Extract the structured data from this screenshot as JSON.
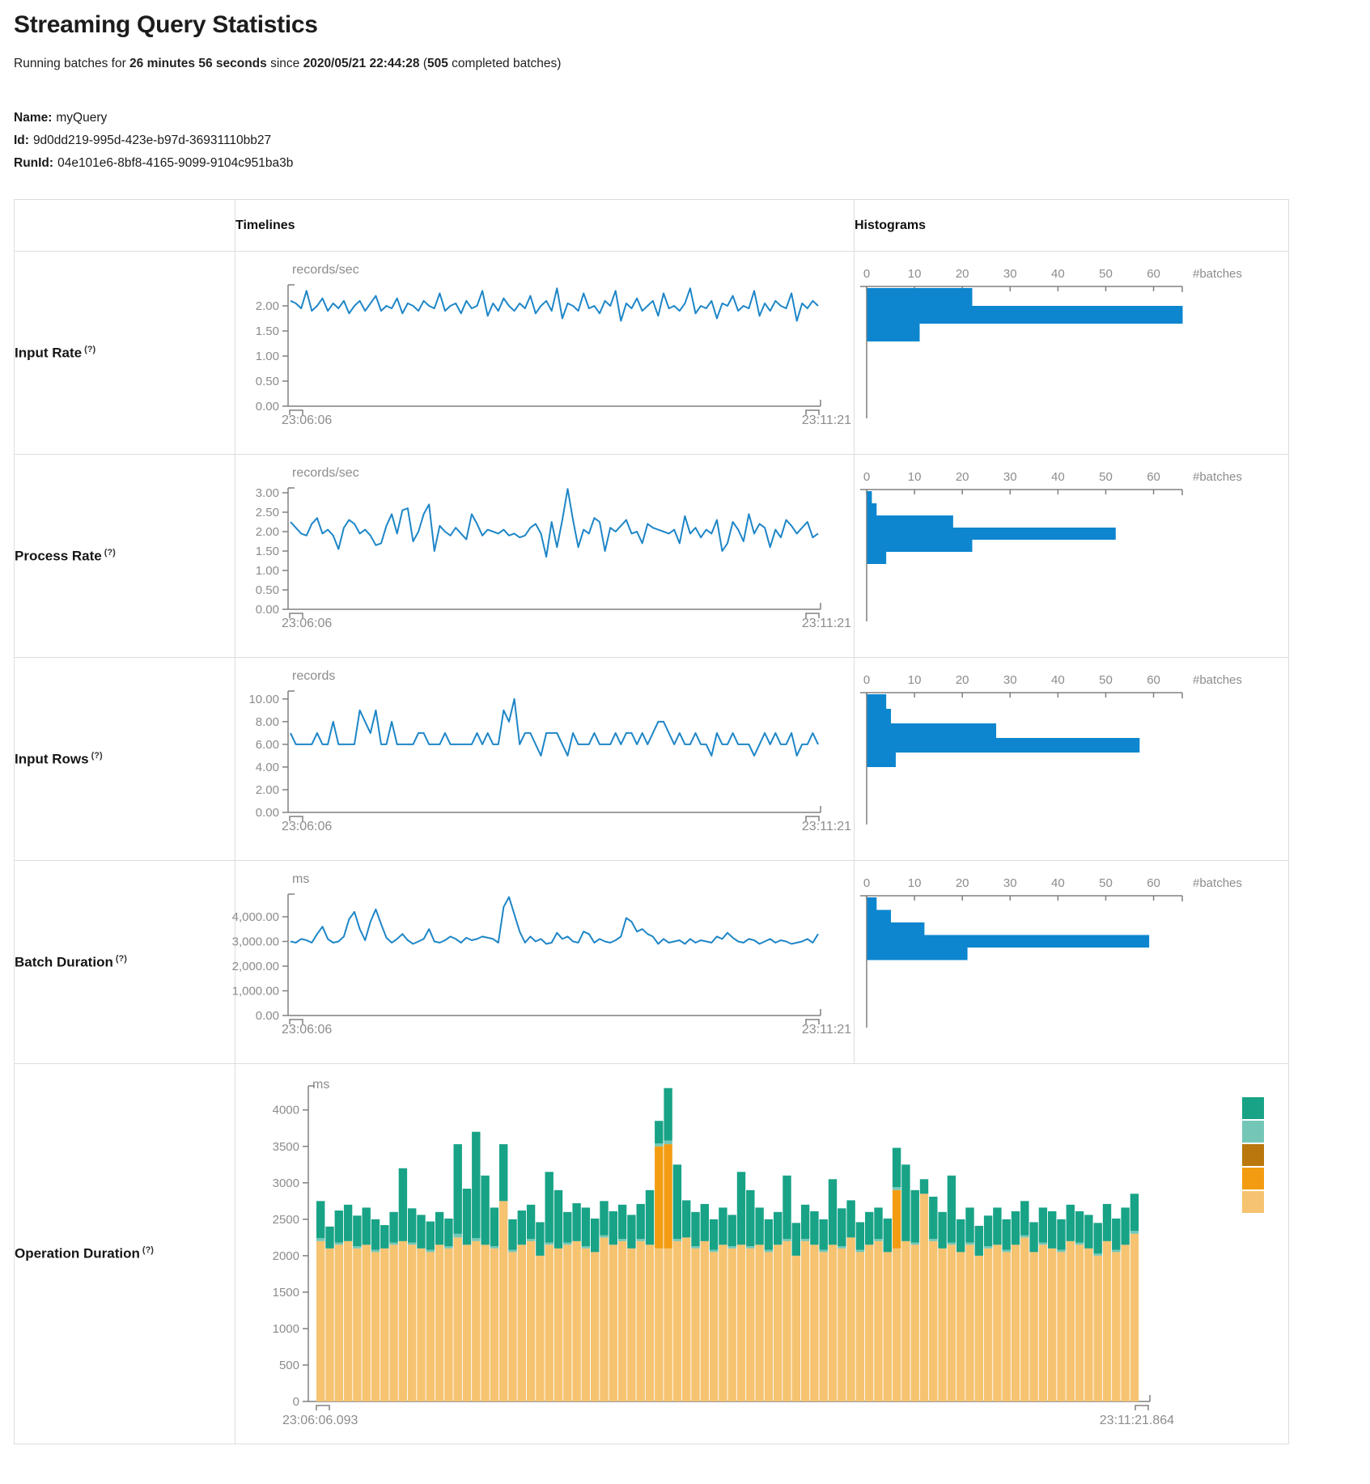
{
  "page": {
    "title": "Streaming Query Statistics",
    "subtitle": {
      "prefix": "Running batches for ",
      "duration": "26 minutes 56 seconds",
      "middle": " since ",
      "start_time": "2020/05/21 22:44:28",
      "open": " (",
      "completed_batches": "505",
      "suffix": " completed batches)"
    },
    "name_label": "Name:",
    "name_value": "myQuery",
    "id_label": "Id:",
    "id_value": "9d0dd219-995d-423e-b97d-36931110bb27",
    "runid_label": "RunId:",
    "runid_value": "04e101e6-8bf8-4165-9099-9104c951ba3b"
  },
  "table": {
    "timelines_header": "Timelines",
    "histograms_header": "Histograms",
    "rows": [
      {
        "label": "Input Rate",
        "help": "(?)"
      },
      {
        "label": "Process Rate",
        "help": "(?)"
      },
      {
        "label": "Input Rows",
        "help": "(?)"
      },
      {
        "label": "Batch Duration",
        "help": "(?)"
      },
      {
        "label": "Operation Duration",
        "help": "(?)"
      }
    ]
  },
  "colors": {
    "timeline_line": "#1e86c7",
    "histogram_fill": "#0d86cf",
    "axis": "#808080",
    "op_green": "#18a387",
    "op_light_teal": "#74c7b6",
    "op_dark_orange": "#b9770e",
    "op_orange": "#f39c12",
    "op_tan": "#f6c371"
  },
  "chart_data": {
    "input_rate": {
      "timeline": {
        "type": "line",
        "unit": "records/sec",
        "y_ticks": [
          0,
          0.5,
          1,
          1.5,
          2
        ],
        "y_tick_labels": [
          "0.00",
          "0.50",
          "1.00",
          "1.50",
          "2.00"
        ],
        "y_max": 2.42,
        "x_start_label": "23:06:06",
        "x_end_label": "23:11:21",
        "values": [
          2.1,
          2.05,
          1.95,
          2.3,
          1.9,
          2.0,
          2.15,
          1.9,
          2.05,
          1.95,
          2.1,
          1.85,
          2.0,
          2.1,
          1.9,
          2.05,
          2.2,
          1.9,
          2.0,
          1.95,
          2.15,
          1.85,
          2.05,
          2.0,
          1.9,
          2.1,
          2.0,
          1.95,
          2.25,
          1.9,
          2.0,
          2.05,
          1.85,
          2.1,
          1.95,
          2.0,
          2.3,
          1.8,
          2.05,
          1.9,
          2.15,
          2.0,
          1.9,
          2.05,
          1.95,
          2.2,
          1.85,
          2.0,
          2.1,
          1.9,
          2.35,
          1.75,
          2.05,
          2.0,
          1.9,
          2.25,
          1.95,
          2.0,
          1.85,
          2.1,
          2.0,
          2.3,
          1.7,
          2.05,
          1.95,
          2.15,
          1.9,
          2.0,
          2.1,
          1.8,
          2.25,
          1.95,
          2.0,
          1.9,
          2.05,
          2.35,
          1.85,
          2.0,
          1.95,
          2.1,
          1.75,
          2.05,
          2.0,
          2.2,
          1.9,
          2.0,
          1.95,
          2.3,
          1.8,
          2.05,
          1.9,
          2.1,
          2.0,
          1.95,
          2.25,
          1.7,
          2.05,
          1.95,
          2.1,
          2.0
        ]
      },
      "histogram": {
        "type": "bar",
        "xlabel": "#batches",
        "x_ticks": [
          0,
          10,
          20,
          30,
          40,
          50,
          60
        ],
        "x_max": 66,
        "values": [
          22,
          66,
          11
        ]
      }
    },
    "process_rate": {
      "timeline": {
        "type": "line",
        "unit": "records/sec",
        "y_ticks": [
          0,
          0.5,
          1,
          1.5,
          2,
          2.5,
          3
        ],
        "y_tick_labels": [
          "0.00",
          "0.50",
          "1.00",
          "1.50",
          "2.00",
          "2.50",
          "3.00"
        ],
        "y_max": 3.125,
        "x_start_label": "23:06:06",
        "x_end_label": "23:11:21",
        "values": [
          2.25,
          2.1,
          1.95,
          1.9,
          2.2,
          2.35,
          1.95,
          2.05,
          1.9,
          1.55,
          2.1,
          2.3,
          2.2,
          1.95,
          2.05,
          1.9,
          1.65,
          1.7,
          2.15,
          2.45,
          1.95,
          2.55,
          2.6,
          1.75,
          2.0,
          2.45,
          2.7,
          1.5,
          2.15,
          2.0,
          1.9,
          2.1,
          1.95,
          1.8,
          2.45,
          2.2,
          1.9,
          2.05,
          2.0,
          1.95,
          2.05,
          1.9,
          1.95,
          1.85,
          1.9,
          2.1,
          2.2,
          1.95,
          1.35,
          2.25,
          1.6,
          2.3,
          3.1,
          2.3,
          1.6,
          2.05,
          1.95,
          2.35,
          2.25,
          1.5,
          2.1,
          2.0,
          2.15,
          2.3,
          1.95,
          2.0,
          1.7,
          2.2,
          2.1,
          2.05,
          2.0,
          1.95,
          2.05,
          1.7,
          2.4,
          1.95,
          2.1,
          1.85,
          2.05,
          1.95,
          2.3,
          1.5,
          1.7,
          2.25,
          2.05,
          1.75,
          2.45,
          1.95,
          2.2,
          2.1,
          1.6,
          2.05,
          1.85,
          2.3,
          2.15,
          1.95,
          2.1,
          2.25,
          1.85,
          1.95
        ]
      },
      "histogram": {
        "type": "bar",
        "xlabel": "#batches",
        "x_ticks": [
          0,
          10,
          20,
          30,
          40,
          50,
          60
        ],
        "x_max": 66,
        "values": [
          1,
          2,
          18,
          52,
          22,
          4
        ]
      }
    },
    "input_rows": {
      "timeline": {
        "type": "line",
        "unit": "records",
        "y_ticks": [
          0,
          2,
          4,
          6,
          8,
          10
        ],
        "y_tick_labels": [
          "0.00",
          "2.00",
          "4.00",
          "6.00",
          "8.00",
          "10.00"
        ],
        "y_max": 10.7,
        "x_start_label": "23:06:06",
        "x_end_label": "23:11:21",
        "values": [
          7,
          6,
          6,
          6,
          6,
          7,
          6,
          6,
          8,
          6,
          6,
          6,
          6,
          9,
          8,
          7,
          9,
          6,
          6,
          8,
          6,
          6,
          6,
          6,
          7,
          7,
          6,
          6,
          6,
          7,
          6,
          6,
          6,
          6,
          6,
          7,
          6,
          7,
          6,
          6,
          9,
          8,
          10,
          6,
          7,
          7,
          6,
          5,
          7,
          7,
          7,
          6,
          5,
          7,
          6,
          6,
          6,
          7,
          6,
          6,
          6,
          7,
          6,
          7,
          7,
          6,
          7,
          6,
          7,
          8,
          8,
          7,
          6,
          7,
          6,
          6,
          7,
          6,
          6,
          5,
          7,
          6,
          6,
          7,
          6,
          6,
          6,
          5,
          6,
          7,
          6,
          7,
          6,
          6,
          7,
          5,
          6,
          6,
          7,
          6
        ]
      },
      "histogram": {
        "type": "bar",
        "xlabel": "#batches",
        "x_ticks": [
          0,
          10,
          20,
          30,
          40,
          50,
          60
        ],
        "x_max": 66,
        "values": [
          4,
          5,
          27,
          57,
          6
        ]
      }
    },
    "batch_duration": {
      "timeline": {
        "type": "line",
        "unit": "ms",
        "y_ticks": [
          0,
          1000,
          2000,
          3000,
          4000
        ],
        "y_tick_labels": [
          "0.00",
          "1,000.00",
          "2,000.00",
          "3,000.00",
          "4,000.00"
        ],
        "y_max": 4918,
        "x_start_label": "23:06:06",
        "x_end_label": "23:11:21",
        "values": [
          3000,
          2950,
          3100,
          3050,
          2950,
          3300,
          3600,
          3100,
          2950,
          3000,
          3200,
          3900,
          4200,
          3500,
          3050,
          3800,
          4300,
          3700,
          3150,
          2950,
          3100,
          3300,
          3050,
          2900,
          3000,
          3100,
          3500,
          3000,
          2950,
          3050,
          3200,
          3100,
          2950,
          3150,
          3050,
          3100,
          3200,
          3150,
          3100,
          2950,
          4400,
          4800,
          4100,
          3400,
          2950,
          3200,
          3000,
          3100,
          2900,
          2950,
          3350,
          3100,
          3200,
          3000,
          2950,
          3400,
          3300,
          2950,
          3100,
          3000,
          2950,
          3050,
          3200,
          3950,
          3800,
          3400,
          3500,
          3300,
          3200,
          2900,
          3100,
          2950,
          3000,
          3050,
          2900,
          3100,
          2950,
          3050,
          3000,
          2950,
          3200,
          3100,
          3350,
          3150,
          3000,
          2950,
          3100,
          3050,
          2900,
          3000,
          3100,
          2950,
          3050,
          3000,
          2900,
          2950,
          3000,
          3100,
          2950,
          3300
        ]
      },
      "histogram": {
        "type": "bar",
        "xlabel": "#batches",
        "x_ticks": [
          0,
          10,
          20,
          30,
          40,
          50,
          60
        ],
        "x_max": 66,
        "values": [
          2,
          5,
          12,
          59,
          21
        ]
      }
    },
    "operation_duration": {
      "type": "stacked-bar",
      "unit": "ms",
      "y_ticks": [
        0,
        500,
        1000,
        1500,
        2000,
        2500,
        3000,
        3500,
        4000
      ],
      "y_tick_labels": [
        "0",
        "500",
        "1000",
        "1500",
        "2000",
        "2500",
        "3000",
        "3500",
        "4000"
      ],
      "y_max": 4330,
      "x_start_label": "23:06:06.093",
      "x_end_label": "23:11:21.864",
      "stack_order": [
        "tan",
        "orange",
        "light_teal",
        "green"
      ],
      "legend_order": [
        "green",
        "light_teal",
        "dark_orange",
        "orange",
        "tan"
      ],
      "bars": [
        [
          2200,
          0,
          40,
          510
        ],
        [
          2100,
          0,
          0,
          300
        ],
        [
          2150,
          0,
          30,
          440
        ],
        [
          2200,
          0,
          0,
          500
        ],
        [
          2100,
          0,
          30,
          420
        ],
        [
          2150,
          0,
          0,
          510
        ],
        [
          2050,
          0,
          30,
          420
        ],
        [
          2100,
          0,
          0,
          320
        ],
        [
          2150,
          0,
          30,
          420
        ],
        [
          2200,
          0,
          0,
          1000
        ],
        [
          2150,
          0,
          30,
          470
        ],
        [
          2100,
          0,
          0,
          460
        ],
        [
          2050,
          0,
          30,
          390
        ],
        [
          2150,
          0,
          0,
          450
        ],
        [
          2100,
          0,
          30,
          380
        ],
        [
          2250,
          0,
          50,
          1230
        ],
        [
          2150,
          0,
          0,
          770
        ],
        [
          2200,
          0,
          40,
          1460
        ],
        [
          2150,
          0,
          0,
          950
        ],
        [
          2100,
          0,
          30,
          530
        ],
        [
          2750,
          0,
          0,
          780
        ],
        [
          2050,
          0,
          30,
          420
        ],
        [
          2150,
          0,
          0,
          470
        ],
        [
          2200,
          0,
          30,
          470
        ],
        [
          2000,
          0,
          0,
          460
        ],
        [
          2150,
          0,
          30,
          970
        ],
        [
          2100,
          0,
          0,
          800
        ],
        [
          2150,
          0,
          30,
          420
        ],
        [
          2200,
          0,
          0,
          520
        ],
        [
          2100,
          0,
          30,
          530
        ],
        [
          2050,
          0,
          0,
          460
        ],
        [
          2250,
          0,
          30,
          470
        ],
        [
          2150,
          0,
          0,
          460
        ],
        [
          2200,
          0,
          30,
          470
        ],
        [
          2100,
          0,
          0,
          460
        ],
        [
          2200,
          0,
          30,
          480
        ],
        [
          2150,
          0,
          0,
          750
        ],
        [
          2100,
          1400,
          40,
          310
        ],
        [
          2100,
          1430,
          50,
          720
        ],
        [
          2200,
          0,
          30,
          1020
        ],
        [
          2250,
          0,
          0,
          510
        ],
        [
          2100,
          0,
          30,
          470
        ],
        [
          2200,
          0,
          0,
          510
        ],
        [
          2050,
          0,
          30,
          420
        ],
        [
          2150,
          0,
          0,
          510
        ],
        [
          2100,
          0,
          30,
          430
        ],
        [
          2150,
          0,
          0,
          1000
        ],
        [
          2100,
          0,
          30,
          770
        ],
        [
          2150,
          0,
          0,
          510
        ],
        [
          2050,
          0,
          30,
          420
        ],
        [
          2150,
          0,
          0,
          450
        ],
        [
          2200,
          0,
          30,
          870
        ],
        [
          2000,
          0,
          0,
          450
        ],
        [
          2200,
          0,
          30,
          470
        ],
        [
          2150,
          0,
          0,
          460
        ],
        [
          2050,
          0,
          30,
          420
        ],
        [
          2150,
          0,
          0,
          900
        ],
        [
          2100,
          0,
          30,
          520
        ],
        [
          2250,
          0,
          0,
          510
        ],
        [
          2050,
          0,
          30,
          380
        ],
        [
          2150,
          0,
          0,
          450
        ],
        [
          2200,
          0,
          30,
          430
        ],
        [
          2050,
          0,
          0,
          460
        ],
        [
          2100,
          800,
          40,
          540
        ],
        [
          2200,
          0,
          0,
          1050
        ],
        [
          2150,
          0,
          30,
          720
        ],
        [
          2850,
          0,
          0,
          200
        ],
        [
          2200,
          0,
          30,
          580
        ],
        [
          2100,
          0,
          0,
          500
        ],
        [
          2150,
          0,
          30,
          920
        ],
        [
          2050,
          0,
          0,
          450
        ],
        [
          2150,
          0,
          30,
          480
        ],
        [
          2000,
          0,
          0,
          410
        ],
        [
          2100,
          0,
          30,
          420
        ],
        [
          2150,
          0,
          0,
          510
        ],
        [
          2050,
          0,
          30,
          420
        ],
        [
          2150,
          0,
          0,
          460
        ],
        [
          2250,
          0,
          30,
          470
        ],
        [
          2050,
          0,
          0,
          410
        ],
        [
          2150,
          0,
          30,
          480
        ],
        [
          2100,
          0,
          0,
          510
        ],
        [
          2050,
          0,
          30,
          420
        ],
        [
          2200,
          0,
          0,
          500
        ],
        [
          2150,
          0,
          30,
          430
        ],
        [
          2100,
          0,
          0,
          460
        ],
        [
          2000,
          0,
          30,
          420
        ],
        [
          2200,
          0,
          0,
          510
        ],
        [
          2050,
          0,
          30,
          430
        ],
        [
          2150,
          0,
          0,
          510
        ],
        [
          2300,
          0,
          40,
          510
        ]
      ]
    }
  }
}
